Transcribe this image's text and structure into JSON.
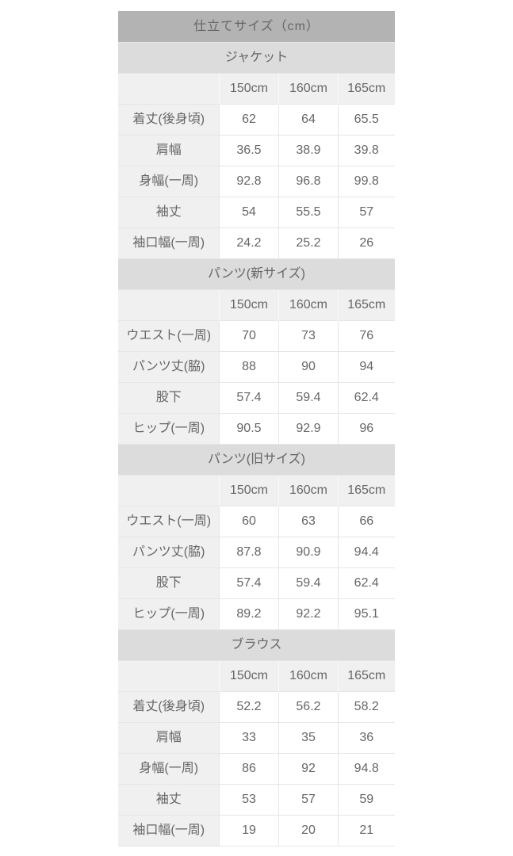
{
  "theme": {
    "title_bg": "#b3b3b3",
    "title_text": "#ffffff",
    "section_bg": "#dcdcdc",
    "label_bg": "#f0f0f0",
    "cell_bg": "#ffffff",
    "border_color": "#e6e6e6",
    "text_color": "#666666"
  },
  "table": {
    "title": "仕立てサイズ（cm）",
    "height_columns": [
      "150cm",
      "160cm",
      "165cm"
    ],
    "sections": [
      {
        "name": "ジャケット",
        "rows": [
          {
            "label": "着丈(後身頃)",
            "values": [
              "62",
              "64",
              "65.5"
            ]
          },
          {
            "label": "肩幅",
            "values": [
              "36.5",
              "38.9",
              "39.8"
            ]
          },
          {
            "label": "身幅(一周)",
            "values": [
              "92.8",
              "96.8",
              "99.8"
            ]
          },
          {
            "label": "袖丈",
            "values": [
              "54",
              "55.5",
              "57"
            ]
          },
          {
            "label": "袖口幅(一周)",
            "values": [
              "24.2",
              "25.2",
              "26"
            ]
          }
        ]
      },
      {
        "name": "パンツ(新サイズ)",
        "rows": [
          {
            "label": "ウエスト(一周)",
            "values": [
              "70",
              "73",
              "76"
            ]
          },
          {
            "label": "パンツ丈(脇)",
            "values": [
              "88",
              "90",
              "94"
            ]
          },
          {
            "label": "股下",
            "values": [
              "57.4",
              "59.4",
              "62.4"
            ]
          },
          {
            "label": "ヒップ(一周)",
            "values": [
              "90.5",
              "92.9",
              "96"
            ]
          }
        ]
      },
      {
        "name": "パンツ(旧サイズ)",
        "rows": [
          {
            "label": "ウエスト(一周)",
            "values": [
              "60",
              "63",
              "66"
            ]
          },
          {
            "label": "パンツ丈(脇)",
            "values": [
              "87.8",
              "90.9",
              "94.4"
            ]
          },
          {
            "label": "股下",
            "values": [
              "57.4",
              "59.4",
              "62.4"
            ]
          },
          {
            "label": "ヒップ(一周)",
            "values": [
              "89.2",
              "92.2",
              "95.1"
            ]
          }
        ]
      },
      {
        "name": "ブラウス",
        "rows": [
          {
            "label": "着丈(後身頃)",
            "values": [
              "52.2",
              "56.2",
              "58.2"
            ]
          },
          {
            "label": "肩幅",
            "values": [
              "33",
              "35",
              "36"
            ]
          },
          {
            "label": "身幅(一周)",
            "values": [
              "86",
              "92",
              "94.8"
            ]
          },
          {
            "label": "袖丈",
            "values": [
              "53",
              "57",
              "59"
            ]
          },
          {
            "label": "袖口幅(一周)",
            "values": [
              "19",
              "20",
              "21"
            ]
          }
        ]
      }
    ]
  }
}
